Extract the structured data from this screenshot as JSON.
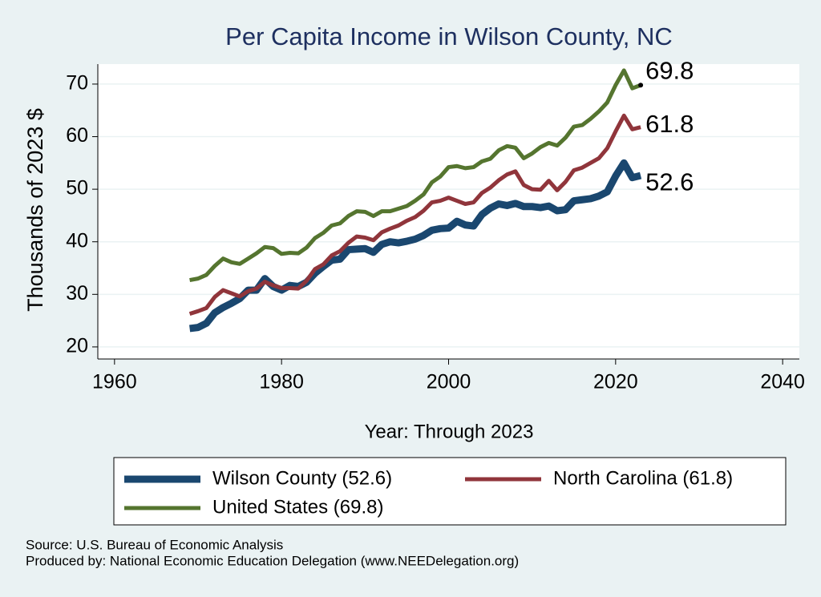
{
  "chart_data": {
    "type": "line",
    "title": "Per Capita Income in Wilson County, NC",
    "xlabel": "Year: Through 2023",
    "ylabel": "Thousands of 2023 $",
    "x": [
      1969,
      1970,
      1971,
      1972,
      1973,
      1974,
      1975,
      1976,
      1977,
      1978,
      1979,
      1980,
      1981,
      1982,
      1983,
      1984,
      1985,
      1986,
      1987,
      1988,
      1989,
      1990,
      1991,
      1992,
      1993,
      1994,
      1995,
      1996,
      1997,
      1998,
      1999,
      2000,
      2001,
      2002,
      2003,
      2004,
      2005,
      2006,
      2007,
      2008,
      2009,
      2010,
      2011,
      2012,
      2013,
      2014,
      2015,
      2016,
      2017,
      2018,
      2019,
      2020,
      2021,
      2022,
      2023
    ],
    "series": [
      {
        "name": "Wilson County (52.6)",
        "color": "#1a476f",
        "end_label": "52.6",
        "values": [
          23.5,
          23.7,
          24.5,
          26.5,
          27.5,
          28.3,
          29.2,
          30.8,
          30.8,
          33.0,
          31.5,
          30.8,
          31.7,
          31.5,
          32.3,
          34.0,
          35.3,
          36.5,
          36.7,
          38.5,
          38.6,
          38.7,
          38.0,
          39.5,
          40.0,
          39.8,
          40.1,
          40.5,
          41.2,
          42.2,
          42.5,
          42.6,
          43.9,
          43.2,
          43.0,
          45.2,
          46.4,
          47.2,
          46.9,
          47.3,
          46.7,
          46.7,
          46.5,
          46.8,
          45.9,
          46.1,
          47.8,
          48.0,
          48.2,
          48.7,
          49.5,
          52.5,
          55.0,
          52.2,
          52.6
        ]
      },
      {
        "name": "North Carolina (61.8)",
        "color": "#90353b",
        "end_label": "61.8",
        "values": [
          26.3,
          26.8,
          27.4,
          29.5,
          30.8,
          30.2,
          29.6,
          30.6,
          31.1,
          32.4,
          31.7,
          31.2,
          31.2,
          31.1,
          32.6,
          34.8,
          35.7,
          37.4,
          38.2,
          39.8,
          41.0,
          40.8,
          40.3,
          41.8,
          42.5,
          43.1,
          44.0,
          44.7,
          45.9,
          47.5,
          47.8,
          48.4,
          47.8,
          47.2,
          47.5,
          49.3,
          50.3,
          51.7,
          52.8,
          53.4,
          50.8,
          50.0,
          49.9,
          51.6,
          49.8,
          51.4,
          53.6,
          54.1,
          55.0,
          55.9,
          57.8,
          61.0,
          64.0,
          61.4,
          61.8
        ]
      },
      {
        "name": "United States (69.8)",
        "color": "#55752f",
        "end_label": "69.8",
        "values": [
          32.7,
          33.0,
          33.7,
          35.4,
          36.8,
          36.1,
          35.8,
          36.8,
          37.8,
          39.0,
          38.8,
          37.7,
          37.9,
          37.8,
          38.9,
          40.7,
          41.7,
          43.1,
          43.5,
          44.9,
          45.8,
          45.7,
          44.9,
          45.8,
          45.8,
          46.3,
          46.8,
          47.8,
          49.0,
          51.3,
          52.4,
          54.2,
          54.4,
          54.0,
          54.2,
          55.3,
          55.8,
          57.4,
          58.2,
          57.9,
          55.9,
          56.8,
          58.0,
          58.8,
          58.3,
          59.8,
          61.9,
          62.2,
          63.4,
          64.8,
          66.5,
          69.8,
          72.6,
          69.2,
          69.8
        ]
      }
    ],
    "xlim": [
      1958,
      2042
    ],
    "xticks": [
      1960,
      1980,
      2000,
      2020,
      2040
    ],
    "ylim": [
      17.7,
      73.8
    ],
    "yticks": [
      20,
      30,
      40,
      50,
      60,
      70
    ],
    "grid": true,
    "source": "Source: U.S. Bureau of Economic Analysis",
    "produced_by": "Produced by: National Economic Education Delegation (www.NEEDelegation.org)"
  }
}
